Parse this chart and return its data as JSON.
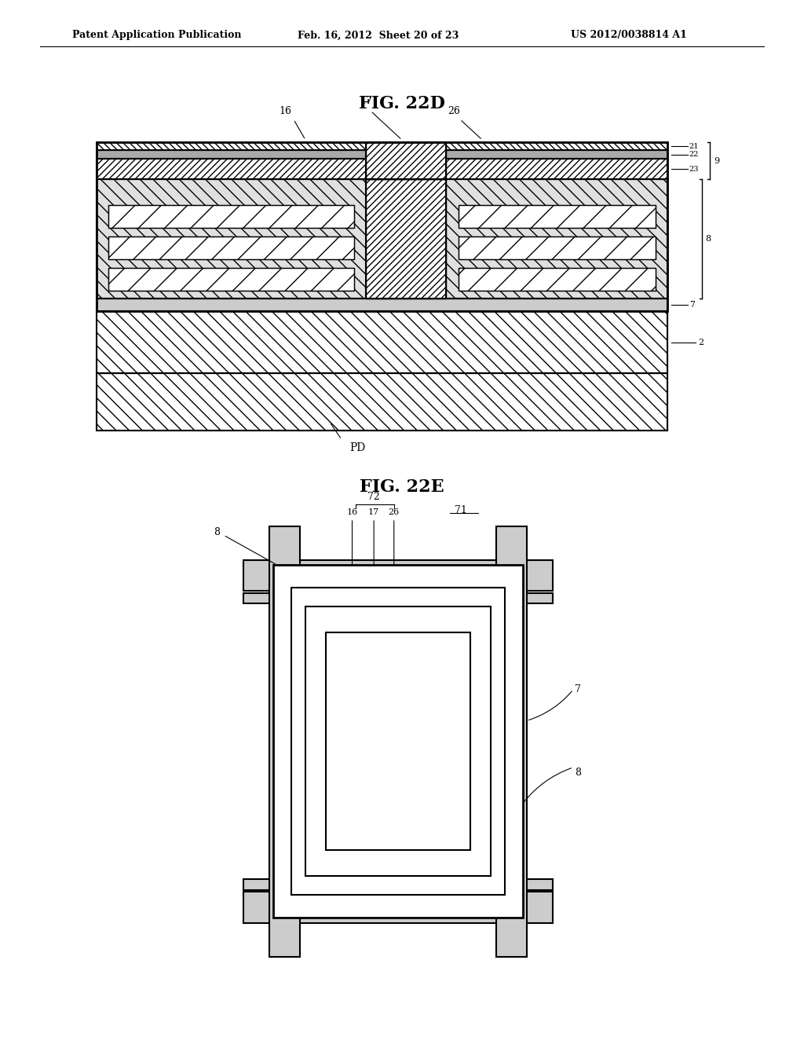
{
  "bg_color": "#ffffff",
  "header_text": "Patent Application Publication",
  "header_date": "Feb. 16, 2012  Sheet 20 of 23",
  "header_patent": "US 2012/0038814 A1",
  "fig1_title": "FIG. 22D",
  "fig2_title": "FIG. 22E"
}
